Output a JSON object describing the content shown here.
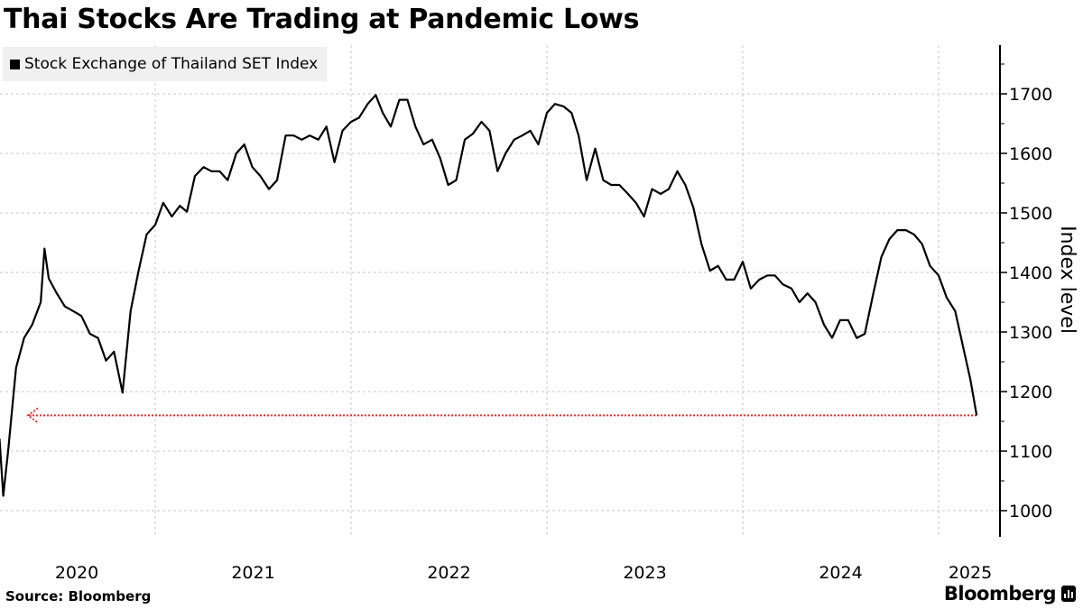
{
  "title": "Thai Stocks Are Trading at Pandemic Lows",
  "legend": {
    "label": "Stock Exchange of Thailand SET Index",
    "color": "#000000"
  },
  "source": "Source: Bloomberg",
  "brand": "Bloomberg",
  "chart_data": {
    "type": "line",
    "title": "Thai Stocks Are Trading at Pandemic Lows",
    "ylabel": "Index level",
    "ylim": [
      950,
      1780
    ],
    "xlim": [
      "2020-03-10",
      "2025-03-31"
    ],
    "y_ticks": [
      1000,
      1100,
      1200,
      1300,
      1400,
      1500,
      1600,
      1700
    ],
    "x_tick_labels": [
      "2020",
      "2021",
      "2022",
      "2023",
      "2024",
      "2025"
    ],
    "grid": true,
    "y_axis_side": "right",
    "line_color": "#000000",
    "reference_line": {
      "value": 1160,
      "color": "#e8312f",
      "style": "dotted",
      "arrow": "left"
    },
    "series": [
      {
        "name": "Stock Exchange of Thailand SET Index",
        "points": [
          [
            "2020-03-12",
            1125
          ],
          [
            "2020-03-16",
            1120
          ],
          [
            "2020-03-23",
            1025
          ],
          [
            "2020-04-01",
            1100
          ],
          [
            "2020-04-16",
            1240
          ],
          [
            "2020-05-01",
            1290
          ],
          [
            "2020-05-16",
            1312
          ],
          [
            "2020-06-01",
            1350
          ],
          [
            "2020-06-08",
            1440
          ],
          [
            "2020-06-16",
            1390
          ],
          [
            "2020-07-01",
            1365
          ],
          [
            "2020-07-16",
            1343
          ],
          [
            "2020-08-01",
            1335
          ],
          [
            "2020-08-16",
            1327
          ],
          [
            "2020-09-01",
            1297
          ],
          [
            "2020-09-16",
            1290
          ],
          [
            "2020-10-01",
            1252
          ],
          [
            "2020-10-16",
            1267
          ],
          [
            "2020-11-01",
            1198
          ],
          [
            "2020-11-16",
            1335
          ],
          [
            "2020-12-01",
            1403
          ],
          [
            "2020-12-16",
            1464
          ],
          [
            "2021-01-01",
            1480
          ],
          [
            "2021-01-16",
            1517
          ],
          [
            "2021-02-01",
            1494
          ],
          [
            "2021-02-16",
            1512
          ],
          [
            "2021-03-01",
            1502
          ],
          [
            "2021-03-16",
            1562
          ],
          [
            "2021-04-01",
            1577
          ],
          [
            "2021-04-16",
            1570
          ],
          [
            "2021-05-01",
            1570
          ],
          [
            "2021-05-16",
            1555
          ],
          [
            "2021-06-01",
            1600
          ],
          [
            "2021-06-16",
            1615
          ],
          [
            "2021-07-01",
            1577
          ],
          [
            "2021-07-16",
            1562
          ],
          [
            "2021-08-01",
            1540
          ],
          [
            "2021-08-16",
            1555
          ],
          [
            "2021-09-01",
            1630
          ],
          [
            "2021-09-16",
            1630
          ],
          [
            "2021-10-01",
            1623
          ],
          [
            "2021-10-16",
            1630
          ],
          [
            "2021-11-01",
            1623
          ],
          [
            "2021-11-16",
            1645
          ],
          [
            "2021-12-01",
            1585
          ],
          [
            "2021-12-16",
            1638
          ],
          [
            "2022-01-01",
            1653
          ],
          [
            "2022-01-16",
            1660
          ],
          [
            "2022-02-01",
            1683
          ],
          [
            "2022-02-16",
            1698
          ],
          [
            "2022-03-01",
            1668
          ],
          [
            "2022-03-16",
            1645
          ],
          [
            "2022-04-01",
            1690
          ],
          [
            "2022-04-16",
            1690
          ],
          [
            "2022-05-01",
            1645
          ],
          [
            "2022-05-16",
            1615
          ],
          [
            "2022-06-01",
            1623
          ],
          [
            "2022-06-16",
            1592
          ],
          [
            "2022-07-01",
            1547
          ],
          [
            "2022-07-16",
            1555
          ],
          [
            "2022-08-01",
            1623
          ],
          [
            "2022-08-16",
            1633
          ],
          [
            "2022-09-01",
            1653
          ],
          [
            "2022-09-16",
            1638
          ],
          [
            "2022-10-01",
            1570
          ],
          [
            "2022-10-16",
            1600
          ],
          [
            "2022-11-01",
            1623
          ],
          [
            "2022-11-16",
            1630
          ],
          [
            "2022-12-01",
            1638
          ],
          [
            "2022-12-16",
            1615
          ],
          [
            "2023-01-01",
            1668
          ],
          [
            "2023-01-16",
            1683
          ],
          [
            "2023-02-01",
            1679
          ],
          [
            "2023-02-16",
            1668
          ],
          [
            "2023-03-01",
            1630
          ],
          [
            "2023-03-16",
            1555
          ],
          [
            "2023-04-01",
            1608
          ],
          [
            "2023-04-16",
            1555
          ],
          [
            "2023-05-01",
            1547
          ],
          [
            "2023-05-16",
            1547
          ],
          [
            "2023-06-01",
            1532
          ],
          [
            "2023-06-16",
            1517
          ],
          [
            "2023-07-01",
            1494
          ],
          [
            "2023-07-16",
            1540
          ],
          [
            "2023-08-01",
            1532
          ],
          [
            "2023-08-16",
            1540
          ],
          [
            "2023-09-01",
            1570
          ],
          [
            "2023-09-16",
            1547
          ],
          [
            "2023-10-01",
            1509
          ],
          [
            "2023-10-16",
            1448
          ],
          [
            "2023-11-01",
            1403
          ],
          [
            "2023-11-16",
            1411
          ],
          [
            "2023-12-01",
            1388
          ],
          [
            "2023-12-16",
            1388
          ],
          [
            "2024-01-01",
            1418
          ],
          [
            "2024-01-16",
            1373
          ],
          [
            "2024-02-01",
            1388
          ],
          [
            "2024-02-16",
            1395
          ],
          [
            "2024-03-01",
            1395
          ],
          [
            "2024-03-16",
            1380
          ],
          [
            "2024-04-01",
            1373
          ],
          [
            "2024-04-16",
            1350
          ],
          [
            "2024-05-01",
            1365
          ],
          [
            "2024-05-16",
            1350
          ],
          [
            "2024-06-01",
            1312
          ],
          [
            "2024-06-16",
            1290
          ],
          [
            "2024-07-01",
            1320
          ],
          [
            "2024-07-16",
            1320
          ],
          [
            "2024-08-01",
            1290
          ],
          [
            "2024-08-16",
            1297
          ],
          [
            "2024-09-01",
            1365
          ],
          [
            "2024-09-16",
            1426
          ],
          [
            "2024-10-01",
            1456
          ],
          [
            "2024-10-16",
            1471
          ],
          [
            "2024-11-01",
            1471
          ],
          [
            "2024-11-16",
            1464
          ],
          [
            "2024-12-01",
            1448
          ],
          [
            "2024-12-16",
            1411
          ],
          [
            "2025-01-01",
            1395
          ],
          [
            "2025-01-16",
            1358
          ],
          [
            "2025-02-01",
            1335
          ],
          [
            "2025-02-16",
            1274
          ],
          [
            "2025-03-01",
            1221
          ],
          [
            "2025-03-13",
            1160
          ]
        ]
      }
    ]
  }
}
